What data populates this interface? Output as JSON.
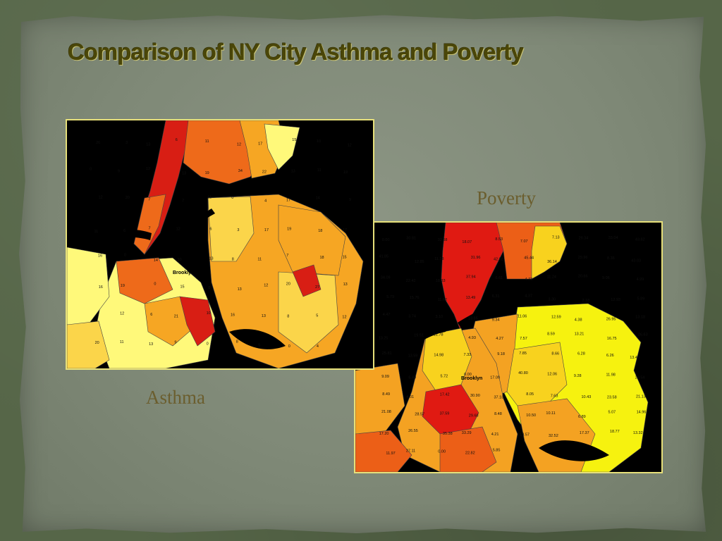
{
  "slide": {
    "title": "Comparison of NY City Asthma and Poverty",
    "background_color": "#566648",
    "title_color": "#4a4608",
    "caption_color": "#6b5e2e"
  },
  "maps": {
    "asthma": {
      "caption": "Asthma",
      "borough_label": "Brooklyn",
      "zone_labels": [
        "26",
        "3",
        "13",
        "6",
        "11",
        "12",
        "17",
        "15",
        "10",
        "12",
        "0",
        "9",
        "12",
        "13",
        "19",
        "34",
        "22",
        "13",
        "11",
        "19",
        "12",
        "20",
        "7",
        "7",
        "11",
        "0",
        "4",
        "17",
        "14",
        "9",
        "11",
        "6",
        "7",
        "12",
        "6",
        "3",
        "17",
        "19",
        "18",
        "17",
        "16",
        "0",
        "14",
        "10",
        "13",
        "8",
        "11",
        "7",
        "18",
        "15",
        "16",
        "19",
        "0",
        "15",
        "0",
        "13",
        "12",
        "20",
        "27",
        "13",
        "7",
        "12",
        "6",
        "21",
        "10",
        "16",
        "13",
        "8",
        "5",
        "12",
        "20",
        "11",
        "13",
        "9",
        "0",
        "8",
        "5",
        "0",
        "4"
      ],
      "palette": [
        "#fff97a",
        "#fbd54a",
        "#f6a623",
        "#ee6a1a",
        "#d81e14"
      ]
    },
    "poverty": {
      "caption": "Poverty",
      "borough_label": "Brooklyn",
      "zone_labels": [
        "0.00",
        "30.81",
        "32.68",
        "18.07",
        "8.53",
        "7.07",
        "7.13",
        "29.34",
        "33.04",
        "43.82",
        "41.85",
        "12.85",
        "11.18",
        "31.96",
        "42.92",
        "45.44",
        "36.14",
        "29.96",
        "8.36",
        "43.03",
        "34.09",
        "22.42",
        "18.33",
        "37.94",
        "6.61",
        "4.73",
        "11.24",
        "20.66",
        "9.06",
        "4.99",
        "5.79",
        "15.76",
        "11.62",
        "13.49",
        "6.31",
        "4.37",
        "3.30",
        "2.18",
        "12.93",
        "5.89",
        "4.47",
        "3.74",
        "3.10",
        "13.85",
        "9.34",
        "11.06",
        "12.59",
        "4.38",
        "26.95",
        "13.18",
        "13.25",
        "19.51",
        "12.78",
        "4.93",
        "4.27",
        "7.57",
        "8.59",
        "13.21",
        "16.75",
        "26.63",
        "25.81",
        "13.59",
        "14.98",
        "7.33",
        "9.18",
        "7.85",
        "8.66",
        "6.28",
        "6.26",
        "13.40",
        "9.09",
        "6.49",
        "5.72",
        "0.00",
        "17.09",
        "40.80",
        "12.06",
        "9.28",
        "11.98",
        "23.54",
        "8.49",
        "4.01",
        "17.42",
        "30.90",
        "37.18",
        "8.05",
        "7.63",
        "10.43",
        "23.58",
        "21.13",
        "21.08",
        "28.57",
        "37.59",
        "29.68",
        "8.48",
        "10.50",
        "10.11",
        "6.89",
        "5.07",
        "14.96",
        "17.20",
        "26.55",
        "35.38",
        "33.29",
        "4.21",
        "13.57",
        "32.52",
        "17.37",
        "18.77",
        "13.32",
        "11.97",
        "27.11",
        "0.00",
        "22.82",
        "5.85"
      ],
      "palette": [
        "#f6f20f",
        "#f8d21e",
        "#f4a222",
        "#ec5f17",
        "#e01a12"
      ]
    }
  }
}
